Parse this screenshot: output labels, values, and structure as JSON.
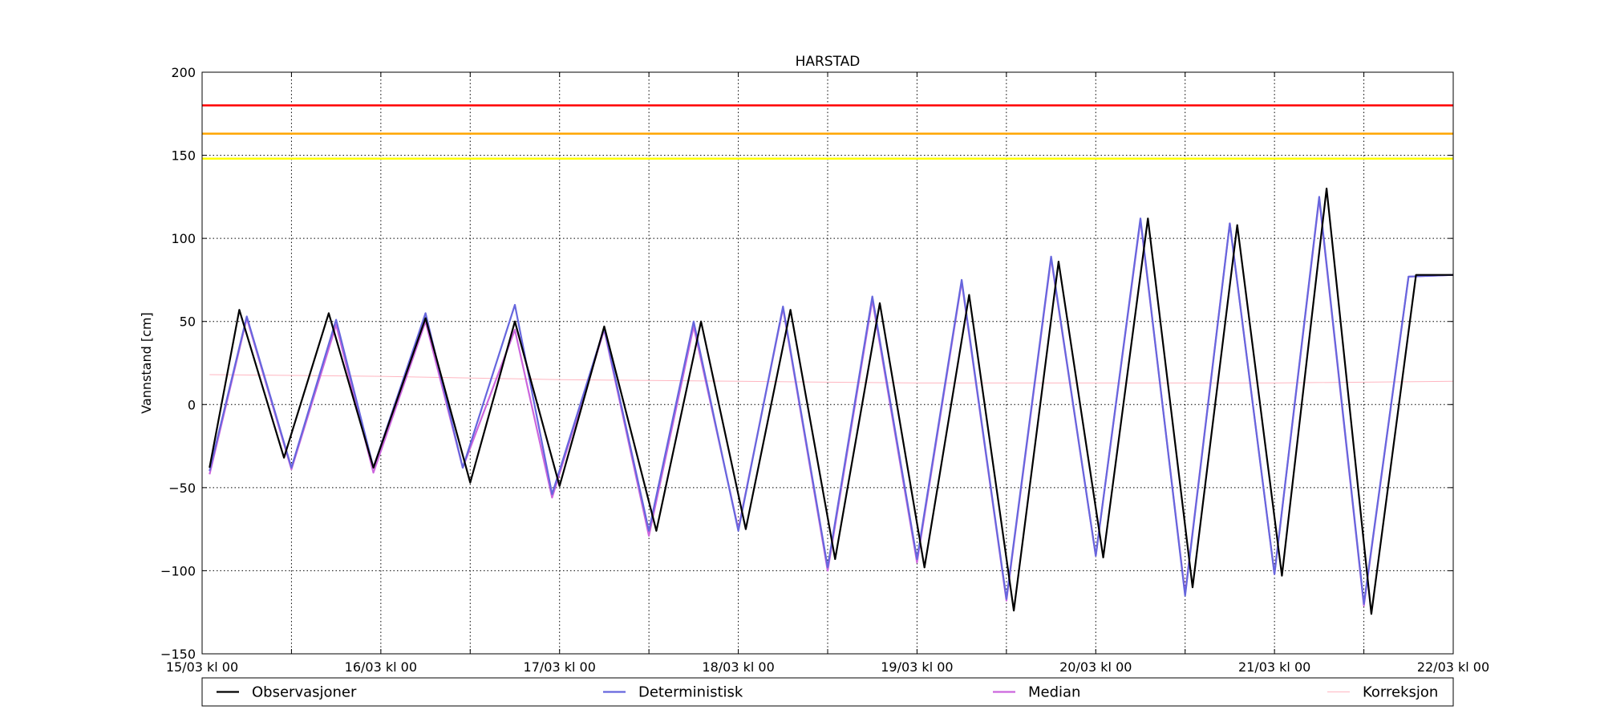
{
  "chart_data": {
    "type": "line",
    "title": "HARSTAD",
    "ylabel": "Vannstand [cm]",
    "xlabel": "",
    "ylim": [
      -150,
      200
    ],
    "yticks": [
      -150,
      -100,
      -50,
      0,
      50,
      100,
      150,
      200
    ],
    "x_range_hours": [
      0,
      168
    ],
    "x_major_labels": [
      "15/03 kl 00",
      "16/03 kl 00",
      "17/03 kl 00",
      "18/03 kl 00",
      "19/03 kl 00",
      "20/03 kl 00",
      "21/03 kl 00",
      "22/03 kl 00"
    ],
    "x_major_hours": [
      0,
      24,
      48,
      72,
      96,
      120,
      144,
      168
    ],
    "x_minor_hours": [
      12,
      36,
      60,
      84,
      108,
      132,
      156
    ],
    "grid": true,
    "legend_position": "bottom",
    "thresholds": [
      {
        "value": 180,
        "color": "#ff0000"
      },
      {
        "value": 163,
        "color": "#ffa500"
      },
      {
        "value": 148,
        "color": "#ffff00"
      }
    ],
    "series": [
      {
        "name": "Observasjoner",
        "color": "#000000",
        "x_hours": [
          1,
          5,
          11,
          17,
          23,
          30,
          36,
          42,
          48,
          54,
          61,
          67,
          73,
          79,
          85,
          91,
          97,
          103,
          109,
          115,
          121,
          127,
          133,
          139,
          145,
          151,
          157,
          163,
          168
        ],
        "y": [
          -38,
          57,
          -32,
          55,
          -38,
          52,
          -47,
          50,
          -49,
          47,
          -76,
          50,
          -75,
          57,
          -93,
          61,
          -98,
          66,
          -124,
          86,
          -92,
          112,
          -110,
          108,
          -103,
          130,
          -126,
          78,
          78
        ]
      },
      {
        "name": "Deterministisk",
        "color": "#6666dd",
        "x_hours": [
          1,
          6,
          12,
          18,
          23,
          30,
          35,
          42,
          47,
          54,
          60,
          66,
          72,
          78,
          84,
          90,
          96,
          102,
          108,
          114,
          120,
          126,
          132,
          138,
          144,
          150,
          156,
          162,
          168
        ],
        "y": [
          -40,
          53,
          -38,
          51,
          -38,
          55,
          -38,
          60,
          -54,
          46,
          -76,
          50,
          -76,
          59,
          -98,
          65,
          -93,
          75,
          -117,
          89,
          -91,
          112,
          -115,
          109,
          -102,
          125,
          -120,
          77,
          78
        ]
      },
      {
        "name": "Median",
        "color": "#cc66dd",
        "x_hours": [
          1,
          6,
          12,
          18,
          23,
          30,
          35,
          42,
          47,
          54,
          60,
          66,
          72,
          78,
          84,
          90,
          96,
          102,
          108,
          114,
          120,
          126,
          132,
          138,
          144,
          150,
          156,
          162,
          168
        ],
        "y": [
          -42,
          52,
          -39,
          48,
          -41,
          50,
          -38,
          45,
          -56,
          45,
          -79,
          47,
          -75,
          58,
          -100,
          63,
          -95,
          74,
          -118,
          88,
          -91,
          111,
          -114,
          109,
          -102,
          124,
          -121,
          77,
          78
        ]
      },
      {
        "name": "Korreksjon",
        "color": "#ffb6c1",
        "x_hours": [
          1,
          24,
          48,
          72,
          96,
          120,
          144,
          168
        ],
        "y": [
          18,
          17,
          15,
          14,
          13,
          13,
          13,
          14
        ]
      }
    ]
  }
}
